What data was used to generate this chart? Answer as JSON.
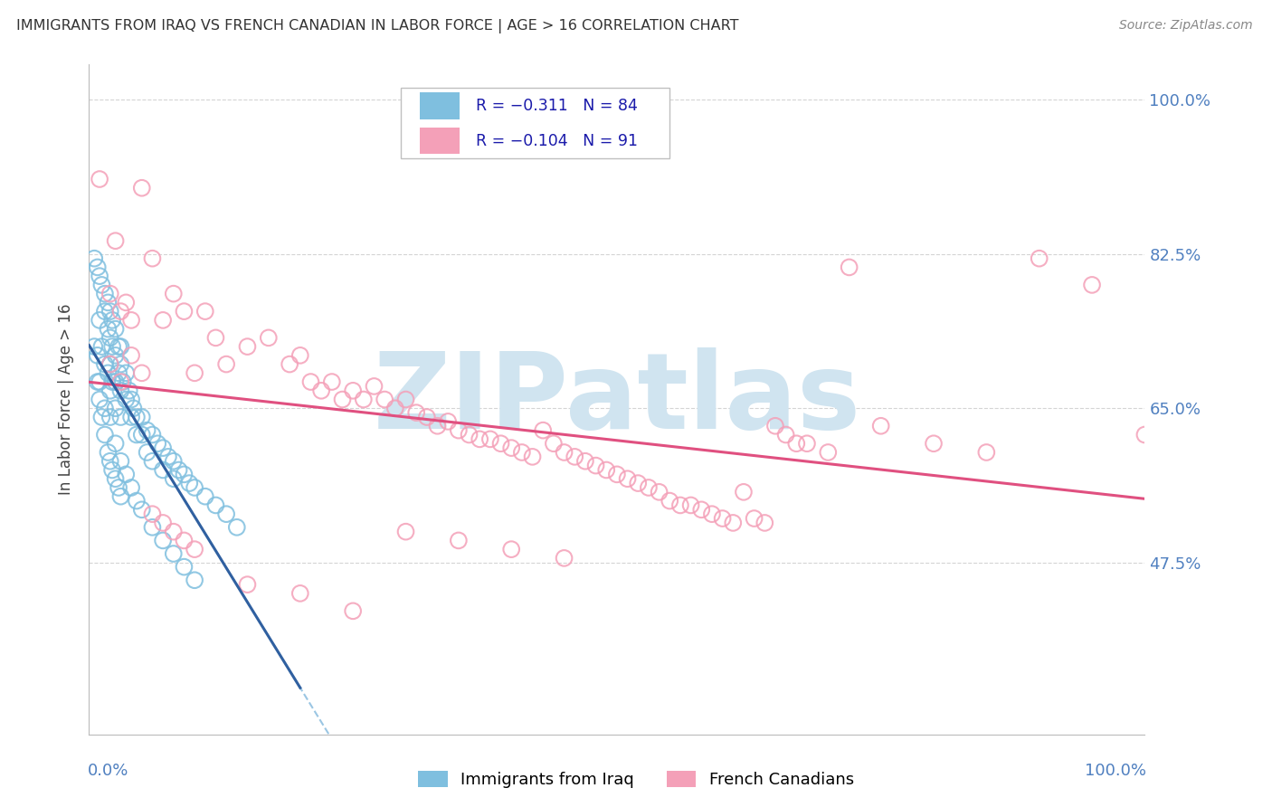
{
  "title": "IMMIGRANTS FROM IRAQ VS FRENCH CANADIAN IN LABOR FORCE | AGE > 16 CORRELATION CHART",
  "source": "Source: ZipAtlas.com",
  "ylabel": "In Labor Force | Age > 16",
  "legend_blue_r": "R = −0.311",
  "legend_blue_n": "N = 84",
  "legend_pink_r": "R = −0.104",
  "legend_pink_n": "N = 91",
  "legend_label_blue": "Immigrants from Iraq",
  "legend_label_pink": "French Canadians",
  "blue_scatter_color": "#7fbfdf",
  "pink_scatter_color": "#f4a0b8",
  "blue_line_color": "#3060a0",
  "pink_line_color": "#e05080",
  "blue_dashed_color": "#90c0e0",
  "watermark_color": "#d0e4f0",
  "background_color": "#ffffff",
  "grid_color": "#d0d0d0",
  "right_axis_color": "#5080c0",
  "title_color": "#333333",
  "xmin": 0.0,
  "xmax": 1.0,
  "ymin": 0.28,
  "ymax": 1.04,
  "ytick_vals": [
    0.475,
    0.65,
    0.825,
    1.0
  ],
  "ytick_labels": [
    "47.5%",
    "65.0%",
    "82.5%",
    "100.0%"
  ],
  "blue_scatter_x": [
    0.005,
    0.005,
    0.008,
    0.008,
    0.01,
    0.01,
    0.01,
    0.012,
    0.012,
    0.015,
    0.015,
    0.015,
    0.015,
    0.018,
    0.018,
    0.018,
    0.02,
    0.02,
    0.02,
    0.02,
    0.02,
    0.022,
    0.022,
    0.022,
    0.025,
    0.025,
    0.025,
    0.025,
    0.028,
    0.028,
    0.03,
    0.03,
    0.03,
    0.03,
    0.032,
    0.035,
    0.035,
    0.038,
    0.04,
    0.04,
    0.042,
    0.045,
    0.045,
    0.05,
    0.05,
    0.055,
    0.055,
    0.06,
    0.06,
    0.065,
    0.07,
    0.07,
    0.075,
    0.08,
    0.08,
    0.085,
    0.09,
    0.095,
    0.1,
    0.11,
    0.12,
    0.13,
    0.14,
    0.008,
    0.01,
    0.012,
    0.015,
    0.018,
    0.02,
    0.022,
    0.025,
    0.028,
    0.03,
    0.025,
    0.03,
    0.035,
    0.04,
    0.045,
    0.05,
    0.06,
    0.07,
    0.08,
    0.09,
    0.1
  ],
  "blue_scatter_y": [
    0.82,
    0.72,
    0.81,
    0.71,
    0.8,
    0.75,
    0.68,
    0.79,
    0.72,
    0.78,
    0.76,
    0.7,
    0.65,
    0.77,
    0.74,
    0.69,
    0.76,
    0.73,
    0.7,
    0.67,
    0.64,
    0.75,
    0.72,
    0.68,
    0.74,
    0.71,
    0.68,
    0.65,
    0.72,
    0.69,
    0.72,
    0.7,
    0.67,
    0.64,
    0.68,
    0.69,
    0.66,
    0.67,
    0.66,
    0.64,
    0.65,
    0.64,
    0.62,
    0.64,
    0.62,
    0.625,
    0.6,
    0.62,
    0.59,
    0.61,
    0.605,
    0.58,
    0.595,
    0.59,
    0.57,
    0.58,
    0.575,
    0.565,
    0.56,
    0.55,
    0.54,
    0.53,
    0.515,
    0.68,
    0.66,
    0.64,
    0.62,
    0.6,
    0.59,
    0.58,
    0.57,
    0.56,
    0.55,
    0.61,
    0.59,
    0.575,
    0.56,
    0.545,
    0.535,
    0.515,
    0.5,
    0.485,
    0.47,
    0.455
  ],
  "pink_scatter_x": [
    0.01,
    0.02,
    0.025,
    0.03,
    0.035,
    0.04,
    0.05,
    0.06,
    0.07,
    0.08,
    0.09,
    0.1,
    0.11,
    0.12,
    0.13,
    0.15,
    0.17,
    0.19,
    0.2,
    0.21,
    0.22,
    0.23,
    0.24,
    0.25,
    0.26,
    0.27,
    0.28,
    0.29,
    0.3,
    0.31,
    0.32,
    0.33,
    0.34,
    0.35,
    0.36,
    0.37,
    0.38,
    0.39,
    0.4,
    0.41,
    0.42,
    0.43,
    0.44,
    0.45,
    0.46,
    0.47,
    0.48,
    0.49,
    0.5,
    0.51,
    0.52,
    0.53,
    0.54,
    0.55,
    0.56,
    0.57,
    0.58,
    0.59,
    0.6,
    0.61,
    0.62,
    0.63,
    0.64,
    0.65,
    0.66,
    0.67,
    0.68,
    0.7,
    0.72,
    0.75,
    0.8,
    0.85,
    0.9,
    0.95,
    1.0,
    0.02,
    0.03,
    0.04,
    0.05,
    0.06,
    0.07,
    0.08,
    0.09,
    0.1,
    0.15,
    0.2,
    0.25,
    0.3,
    0.35,
    0.4,
    0.45
  ],
  "pink_scatter_y": [
    0.91,
    0.78,
    0.84,
    0.76,
    0.77,
    0.75,
    0.9,
    0.82,
    0.75,
    0.78,
    0.76,
    0.69,
    0.76,
    0.73,
    0.7,
    0.72,
    0.73,
    0.7,
    0.71,
    0.68,
    0.67,
    0.68,
    0.66,
    0.67,
    0.66,
    0.675,
    0.66,
    0.65,
    0.66,
    0.645,
    0.64,
    0.63,
    0.635,
    0.625,
    0.62,
    0.615,
    0.615,
    0.61,
    0.605,
    0.6,
    0.595,
    0.625,
    0.61,
    0.6,
    0.595,
    0.59,
    0.585,
    0.58,
    0.575,
    0.57,
    0.565,
    0.56,
    0.555,
    0.545,
    0.54,
    0.54,
    0.535,
    0.53,
    0.525,
    0.52,
    0.555,
    0.525,
    0.52,
    0.63,
    0.62,
    0.61,
    0.61,
    0.6,
    0.81,
    0.63,
    0.61,
    0.6,
    0.82,
    0.79,
    0.62,
    0.7,
    0.68,
    0.71,
    0.69,
    0.53,
    0.52,
    0.51,
    0.5,
    0.49,
    0.45,
    0.44,
    0.42,
    0.51,
    0.5,
    0.49,
    0.48
  ]
}
